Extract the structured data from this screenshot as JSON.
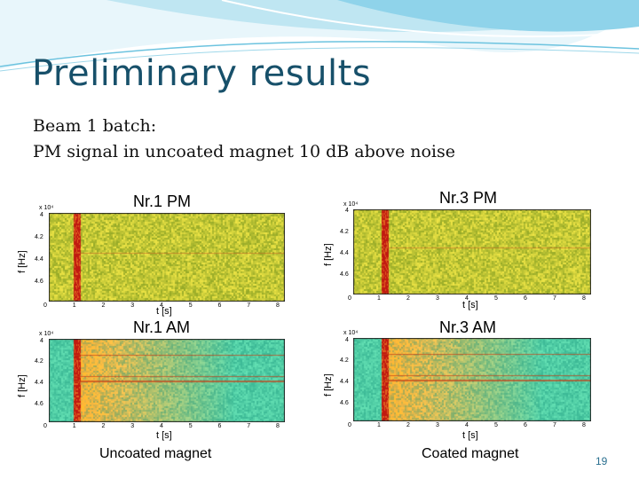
{
  "slide": {
    "title": "Preliminary results",
    "body_lines": [
      "Beam 1 batch:",
      "PM signal in uncoated magnet 10 dB above noise"
    ],
    "slide_number": "19"
  },
  "figures": [
    {
      "title": "Nr.1 PM",
      "xlabel": "t [s]",
      "ylabel": "f [Hz]",
      "exponent": "x 10⁴",
      "yticks": [
        "4",
        "4.2",
        "4.4",
        "4.6"
      ],
      "xticks": [
        "0",
        "1",
        "2",
        "3",
        "4",
        "5",
        "6",
        "7",
        "8"
      ]
    },
    {
      "title": "Nr.3 PM",
      "xlabel": "t [s]",
      "ylabel": "f [Hz]",
      "exponent": "x 10⁴",
      "yticks": [
        "4",
        "4.2",
        "4.4",
        "4.6"
      ],
      "xticks": [
        "0",
        "1",
        "2",
        "3",
        "4",
        "5",
        "6",
        "7",
        "8"
      ]
    },
    {
      "title": "Nr.1 AM",
      "xlabel": "t [s]",
      "ylabel": "f [Hz]",
      "exponent": "x 10⁴",
      "yticks": [
        "4",
        "4.2",
        "4.4",
        "4.6"
      ],
      "xticks": [
        "0",
        "1",
        "2",
        "3",
        "4",
        "5",
        "6",
        "7",
        "8"
      ]
    },
    {
      "title": "Nr.3 AM",
      "xlabel": "t [s]",
      "ylabel": "f [Hz]",
      "exponent": "x 10⁴",
      "yticks": [
        "4",
        "4.2",
        "4.4",
        "4.6"
      ],
      "xticks": [
        "0",
        "1",
        "2",
        "3",
        "4",
        "5",
        "6",
        "7",
        "8"
      ]
    }
  ],
  "captions": {
    "left": "Uncoated magnet",
    "right": "Coated magnet"
  },
  "colors": {
    "title": "#17506a",
    "swoosh_light": "#bfe6f2",
    "swoosh_mid": "#6cc3df",
    "spectro_pm_base": "#b5d13a",
    "spectro_am_base": "#3fc09a",
    "burst": "#c01a10"
  }
}
